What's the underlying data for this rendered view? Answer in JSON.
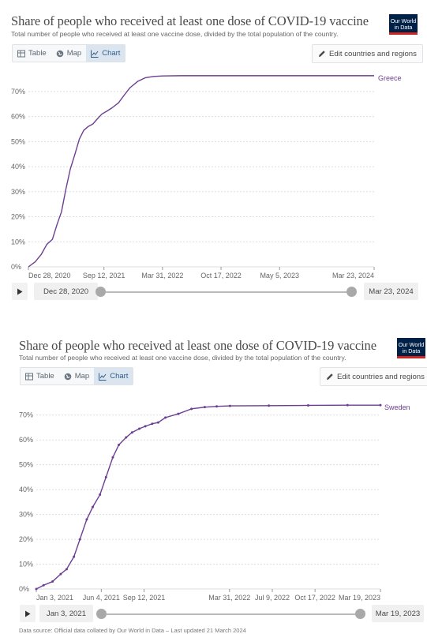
{
  "panels": [
    {
      "title": "Share of people who received at least one dose of COVID-19 vaccine",
      "subtitle": "Total number of people who received at least one vaccine dose, divided by the total population of the country.",
      "logo": {
        "line1": "Our World",
        "line2": "in Data"
      },
      "tabs": [
        {
          "label": "Table",
          "icon": "table-icon",
          "active": false
        },
        {
          "label": "Map",
          "icon": "globe-icon",
          "active": false
        },
        {
          "label": "Chart",
          "icon": "line-chart-icon",
          "active": true
        }
      ],
      "edit_label": "Edit countries and regions",
      "timeline": {
        "start": "Dec 28, 2020",
        "end": "Mar 23, 2024"
      },
      "source": ""
    },
    {
      "title": "Share of people who received at least one dose of COVID-19 vaccine",
      "subtitle": "Total number of people who received at least one vaccine dose, divided by the total population of the country.",
      "logo": {
        "line1": "Our World",
        "line2": "in Data"
      },
      "tabs": [
        {
          "label": "Table",
          "icon": "table-icon",
          "active": false
        },
        {
          "label": "Map",
          "icon": "globe-icon",
          "active": false
        },
        {
          "label": "Chart",
          "icon": "line-chart-icon",
          "active": true
        }
      ],
      "edit_label": "Edit countries and regions",
      "timeline": {
        "start": "Jan 3, 2021",
        "end": "Mar 19, 2023"
      },
      "source": "Data source: Official data collated by Our World in Data – Last updated 21 March 2024"
    }
  ],
  "chart_data": [
    {
      "type": "line",
      "title": "Share of people who received at least one dose of COVID-19 vaccine",
      "xlim": [
        "2020-12-28",
        "2024-03-23"
      ],
      "ylim": [
        0,
        75
      ],
      "y_ticks": [
        "0%",
        "10%",
        "20%",
        "30%",
        "40%",
        "50%",
        "60%",
        "70%"
      ],
      "x_ticks": [
        "Dec 28, 2020",
        "Sep 12, 2021",
        "Mar 31, 2022",
        "Oct 17, 2022",
        "May 5, 2023",
        "Mar 23, 2024"
      ],
      "grid": true,
      "color": "#6d3e91",
      "series": [
        {
          "name": "Greece",
          "x": [
            "2020-12-28",
            "2021-01-20",
            "2021-02-10",
            "2021-03-01",
            "2021-03-20",
            "2021-04-05",
            "2021-04-20",
            "2021-05-05",
            "2021-05-20",
            "2021-06-05",
            "2021-06-20",
            "2021-07-05",
            "2021-07-20",
            "2021-08-05",
            "2021-08-20",
            "2021-09-05",
            "2021-09-20",
            "2021-10-10",
            "2021-11-01",
            "2021-11-20",
            "2021-12-10",
            "2022-01-05",
            "2022-02-01",
            "2022-03-01",
            "2022-03-31",
            "2022-06-01",
            "2022-10-17",
            "2023-05-05",
            "2024-03-23"
          ],
          "y": [
            0,
            2,
            5,
            9,
            11,
            17,
            22,
            31,
            39,
            45,
            51,
            54.5,
            56,
            57,
            59,
            61,
            62,
            63.5,
            65.5,
            68.5,
            71.5,
            74,
            75.5,
            76,
            76.2,
            76.3,
            76.3,
            76.3,
            76.3
          ]
        }
      ]
    },
    {
      "type": "line",
      "title": "Share of people who received at least one dose of COVID-19 vaccine",
      "xlim": [
        "2021-01-03",
        "2023-03-19"
      ],
      "ylim": [
        0,
        75
      ],
      "y_ticks": [
        "0%",
        "10%",
        "20%",
        "30%",
        "40%",
        "50%",
        "60%",
        "70%"
      ],
      "x_ticks": [
        "Jan 3, 2021",
        "Jun 4, 2021",
        "Sep 12, 2021",
        "Mar 31, 2022",
        "Jul 9, 2022",
        "Oct 17, 2022",
        "Mar 19, 2023"
      ],
      "grid": true,
      "color": "#6d3e91",
      "series": [
        {
          "name": "Sweden",
          "x": [
            "2021-01-03",
            "2021-01-20",
            "2021-02-10",
            "2021-03-01",
            "2021-03-15",
            "2021-04-01",
            "2021-04-15",
            "2021-05-01",
            "2021-05-15",
            "2021-06-01",
            "2021-06-15",
            "2021-07-01",
            "2021-07-15",
            "2021-08-01",
            "2021-08-15",
            "2021-09-01",
            "2021-09-15",
            "2021-10-01",
            "2021-10-15",
            "2021-11-01",
            "2021-12-01",
            "2022-01-01",
            "2022-02-01",
            "2022-03-01",
            "2022-04-01",
            "2022-07-01",
            "2022-10-01",
            "2023-01-01",
            "2023-03-19"
          ],
          "y": [
            0,
            1.5,
            3,
            6,
            8,
            13,
            20,
            28,
            33,
            38,
            45,
            53,
            58,
            61,
            63,
            64.5,
            65.5,
            66.5,
            67,
            69,
            70.5,
            72.5,
            73.2,
            73.5,
            73.7,
            73.8,
            73.9,
            74,
            74
          ]
        }
      ]
    }
  ]
}
